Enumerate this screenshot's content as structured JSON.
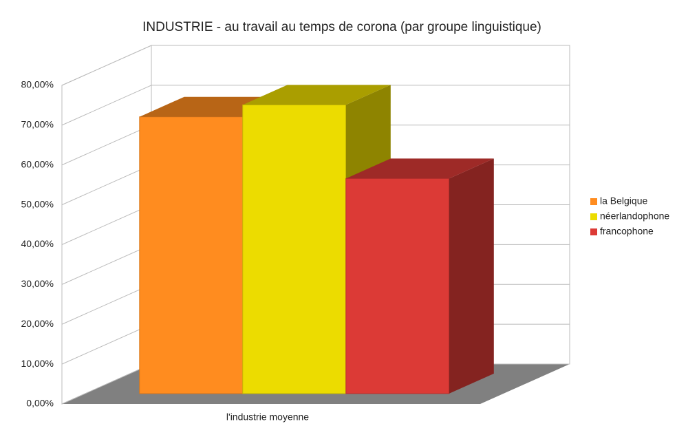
{
  "chart_data": {
    "type": "bar3d",
    "title": "INDUSTRIE  - au travail au temps de corona (par groupe linguistique)",
    "categories": [
      "l'industrie moyenne"
    ],
    "series": [
      {
        "name": "la Belgique",
        "color": "#ff8c1f",
        "values": [
          69.5
        ]
      },
      {
        "name": "néerlandophone",
        "color": "#ecdc00",
        "values": [
          72.5
        ]
      },
      {
        "name": "francophone",
        "color": "#dc3a36",
        "values": [
          54
        ]
      }
    ],
    "ylim": [
      0,
      80
    ],
    "yticks": [
      {
        "value": 0,
        "label": "0,00%"
      },
      {
        "value": 10,
        "label": "10,00%"
      },
      {
        "value": 20,
        "label": "20,00%"
      },
      {
        "value": 30,
        "label": "30,00%"
      },
      {
        "value": 40,
        "label": "40,00%"
      },
      {
        "value": 50,
        "label": "50,00%"
      },
      {
        "value": 60,
        "label": "60,00%"
      },
      {
        "value": 70,
        "label": "70,00%"
      },
      {
        "value": 80,
        "label": "80,00%"
      }
    ],
    "grid": true,
    "legend": "right"
  }
}
